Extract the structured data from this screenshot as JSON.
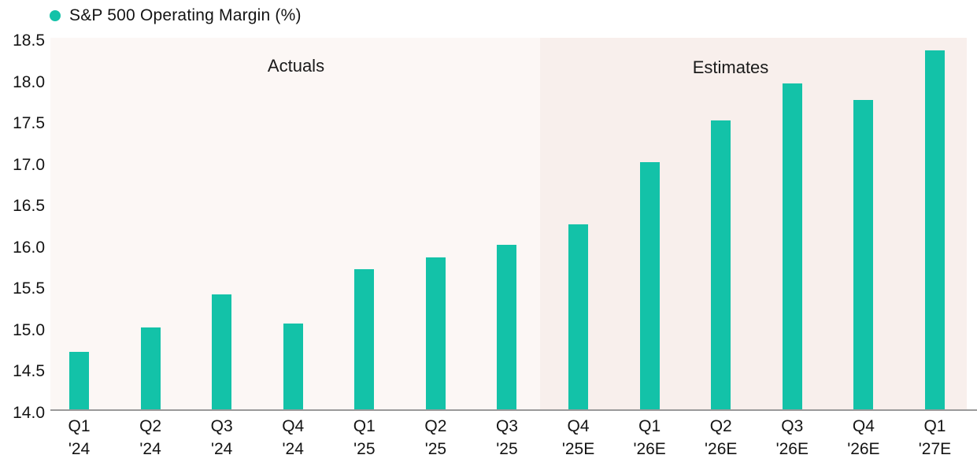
{
  "legend": {
    "label": "S&P 500 Operating Margin (%)"
  },
  "colors": {
    "bar": "#13c2a8",
    "legend_dot": "#13c2a8",
    "actuals_background": "#fcf7f5",
    "estimates_background": "#f8efec",
    "axis_line": "#9a9a9a",
    "text": "#161616"
  },
  "chart_data": {
    "type": "bar",
    "title": "S&P 500 Operating Margin (%)",
    "xlabel": "",
    "ylabel": "",
    "ylim": [
      14.0,
      18.5
    ],
    "ytick_step": 0.5,
    "grid": false,
    "legend_position": "top-left",
    "yticks": [
      "18.5",
      "18.0",
      "17.5",
      "17.0",
      "16.5",
      "16.0",
      "15.5",
      "15.0",
      "14.5",
      "14.0"
    ],
    "categories": [
      {
        "line1": "Q1",
        "line2": "'24"
      },
      {
        "line1": "Q2",
        "line2": "'24"
      },
      {
        "line1": "Q3",
        "line2": "'24"
      },
      {
        "line1": "Q4",
        "line2": "'24"
      },
      {
        "line1": "Q1",
        "line2": "'25"
      },
      {
        "line1": "Q2",
        "line2": "'25"
      },
      {
        "line1": "Q3",
        "line2": "'25"
      },
      {
        "line1": "Q4",
        "line2": "'25E"
      },
      {
        "line1": "Q1",
        "line2": "'26E"
      },
      {
        "line1": "Q2",
        "line2": "'26E"
      },
      {
        "line1": "Q3",
        "line2": "'26E"
      },
      {
        "line1": "Q4",
        "line2": "'26E"
      },
      {
        "line1": "Q1",
        "line2": "'27E"
      }
    ],
    "values": [
      14.7,
      15.0,
      15.4,
      15.05,
      15.7,
      15.85,
      16.0,
      16.25,
      17.0,
      17.5,
      17.95,
      17.75,
      18.35
    ],
    "regions": [
      {
        "label": "Actuals",
        "from_index": 0,
        "to_index": 6
      },
      {
        "label": "Estimates",
        "from_index": 7,
        "to_index": 12
      }
    ]
  }
}
